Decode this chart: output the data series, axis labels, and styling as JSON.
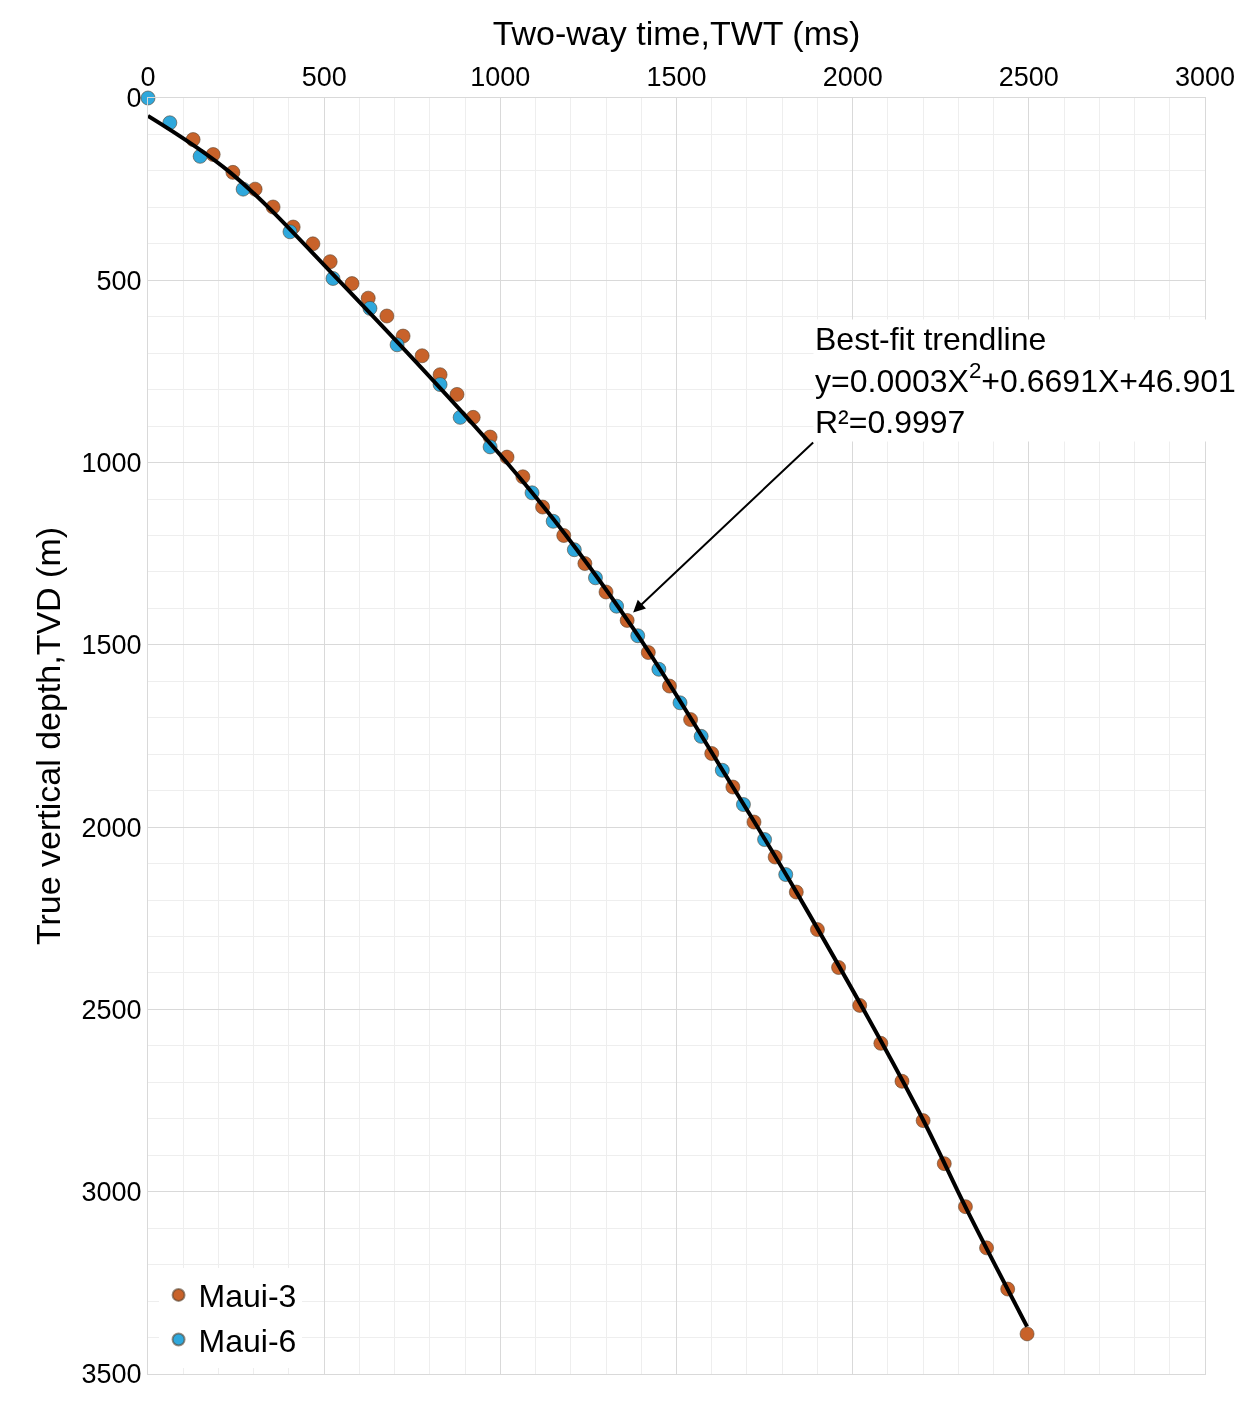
{
  "chart_data": {
    "type": "scatter",
    "xlabel": "Two-way time,TWT (ms)",
    "ylabel": "True vertical depth,TVD (m)",
    "xlim": [
      0,
      3000
    ],
    "ylim": [
      3500,
      0
    ],
    "xticks": [
      0,
      {
        "value": 100,
        "label": null
      },
      {
        "value": 200,
        "label": null
      },
      {
        "value": 300,
        "label": null
      },
      {
        "value": 400,
        "label": null
      },
      500,
      {
        "value": 600,
        "label": null
      },
      {
        "value": 700,
        "label": null
      },
      {
        "value": 800,
        "label": null
      },
      {
        "value": 900,
        "label": null
      },
      1000,
      {
        "value": 1100,
        "label": null
      },
      {
        "value": 1200,
        "label": null
      },
      {
        "value": 1300,
        "label": null
      },
      {
        "value": 1400,
        "label": null
      },
      1500,
      {
        "value": 1600,
        "label": null
      },
      {
        "value": 1700,
        "label": null
      },
      {
        "value": 1800,
        "label": null
      },
      {
        "value": 1900,
        "label": null
      },
      2000,
      {
        "value": 2100,
        "label": null
      },
      {
        "value": 2200,
        "label": null
      },
      {
        "value": 2300,
        "label": null
      },
      {
        "value": 2400,
        "label": null
      },
      2500,
      {
        "value": 2600,
        "label": null
      },
      {
        "value": 2700,
        "label": null
      },
      {
        "value": 2800,
        "label": null
      },
      {
        "value": 2900,
        "label": null
      },
      3000
    ],
    "yticks": [
      0,
      {
        "value": 100,
        "label": null
      },
      {
        "value": 200,
        "label": null
      },
      {
        "value": 300,
        "label": null
      },
      {
        "value": 400,
        "label": null
      },
      500,
      {
        "value": 600,
        "label": null
      },
      {
        "value": 700,
        "label": null
      },
      {
        "value": 800,
        "label": null
      },
      {
        "value": 900,
        "label": null
      },
      1000,
      {
        "value": 1100,
        "label": null
      },
      {
        "value": 1200,
        "label": null
      },
      {
        "value": 1300,
        "label": null
      },
      {
        "value": 1400,
        "label": null
      },
      1500,
      {
        "value": 1600,
        "label": null
      },
      {
        "value": 1700,
        "label": null
      },
      {
        "value": 1800,
        "label": null
      },
      {
        "value": 1900,
        "label": null
      },
      2000,
      {
        "value": 2100,
        "label": null
      },
      {
        "value": 2200,
        "label": null
      },
      {
        "value": 2300,
        "label": null
      },
      {
        "value": 2400,
        "label": null
      },
      2500,
      {
        "value": 2600,
        "label": null
      },
      {
        "value": 2700,
        "label": null
      },
      {
        "value": 2800,
        "label": null
      },
      {
        "value": 2900,
        "label": null
      },
      3000,
      {
        "value": 3100,
        "label": null
      },
      {
        "value": 3200,
        "label": null
      },
      {
        "value": 3300,
        "label": null
      },
      {
        "value": 3400,
        "label": null
      },
      3500
    ],
    "grid": true,
    "legend": "bottom left",
    "marker": "circle",
    "series": [
      {
        "name": "Maui-3",
        "color": "#c8622a",
        "x": [
          128,
          185,
          241,
          304,
          355,
          412,
          468,
          517,
          579,
          625,
          678,
          724,
          778,
          829,
          877,
          923,
          971,
          1019,
          1064,
          1120,
          1180,
          1240,
          1300,
          1360,
          1420,
          1480,
          1540,
          1600,
          1660,
          1720,
          1780,
          1840,
          1900,
          1960,
          2020,
          2080,
          2140,
          2200,
          2260,
          2320,
          2380,
          2440,
          2495
        ],
        "values": [
          114,
          155,
          204,
          250,
          299,
          354,
          400,
          449,
          509,
          549,
          598,
          653,
          707,
          759,
          813,
          876,
          930,
          985,
          1039,
          1122,
          1200,
          1277,
          1355,
          1433,
          1521,
          1613,
          1705,
          1798,
          1890,
          1986,
          2082,
          2178,
          2281,
          2385,
          2489,
          2593,
          2697,
          2805,
          2923,
          3041,
          3154,
          3267,
          3390
        ]
      },
      {
        "name": "Maui-6",
        "color": "#2fa8dc",
        "x": [
          0,
          62,
          148,
          270,
          403,
          525,
          630,
          707,
          829,
          886,
          971,
          1090,
          1150,
          1210,
          1270,
          1330,
          1390,
          1450,
          1510,
          1570,
          1630,
          1690,
          1750,
          1810
        ],
        "values": [
          0,
          68,
          160,
          250,
          367,
          495,
          577,
          677,
          786,
          876,
          957,
          1083,
          1161,
          1239,
          1316,
          1394,
          1475,
          1567,
          1659,
          1751,
          1844,
          1938,
          2034,
          2130
        ]
      },
      {
        "type": "line",
        "color": "#000000",
        "marker": "none",
        "line_style": "solid",
        "x": [
          0,
          233,
          536,
          1084,
          1377,
          1660,
          1842,
          2183,
          2325,
          2495
        ],
        "values": [
          49,
          204,
          495,
          1075,
          1455,
          1890,
          2181,
          2771,
          3051,
          3370
        ]
      }
    ],
    "annotations": [
      {
        "text": "Best-fit trendline\ny=0.0003X$^{2}$+0.6691X+46.901\nR²=0.9997",
        "x": 1377,
        "y": 1411
      }
    ]
  }
}
